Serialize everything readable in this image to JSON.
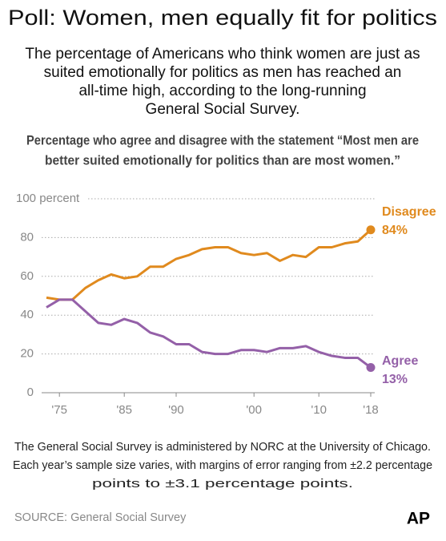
{
  "chart_data": {
    "type": "line",
    "title": "Poll: Women, men equally fit for politics",
    "subtitle": [
      "The percentage of Americans who think women are just as",
      "suited emotionally for politics as men has reached an",
      "all-time high, according to the long-running",
      "General Social Survey."
    ],
    "chart_subtitle": [
      "Percentage who agree and disagree with the statement “Most men are",
      "better suited emotionally for politics than are most women.”"
    ],
    "categories": [
      null,
      "'75",
      null,
      null,
      null,
      null,
      "'85",
      null,
      null,
      null,
      "'90",
      null,
      null,
      null,
      null,
      null,
      "'00",
      null,
      null,
      null,
      null,
      "'10",
      null,
      null,
      null,
      "'18"
    ],
    "series": [
      {
        "name": "Disagree",
        "color": "#e08a1e",
        "values": [
          49,
          48,
          48,
          54,
          58,
          61,
          59,
          60,
          65,
          65,
          69,
          71,
          74,
          75,
          75,
          72,
          71,
          72,
          68,
          71,
          70,
          75,
          75,
          77,
          78,
          84
        ],
        "value_labels": [
          null,
          null,
          null,
          null,
          null,
          null,
          null,
          null,
          null,
          null,
          null,
          null,
          null,
          null,
          null,
          null,
          null,
          null,
          null,
          null,
          null,
          null,
          null,
          null,
          null,
          "84%"
        ]
      },
      {
        "name": "Agree",
        "color": "#9460a8",
        "values": [
          44,
          48,
          48,
          42,
          36,
          35,
          38,
          36,
          31,
          29,
          25,
          25,
          21,
          20,
          20,
          22,
          22,
          21,
          23,
          23,
          24,
          21,
          19,
          18,
          18,
          13
        ],
        "value_labels": [
          null,
          null,
          null,
          null,
          null,
          null,
          null,
          null,
          null,
          null,
          null,
          null,
          null,
          null,
          null,
          null,
          null,
          null,
          null,
          null,
          null,
          null,
          null,
          null,
          null,
          "13%"
        ]
      }
    ],
    "ylim": [
      0,
      100
    ],
    "yticks": [
      0,
      20,
      40,
      60,
      80,
      {
        "value": 100,
        "label": "100 percent"
      }
    ],
    "grid": true,
    "note": [
      "The General Social Survey is administered by NORC at the University of Chicago.",
      "Each year’s sample size varies, with margins of error ranging from ±2.2 percentage",
      "points to ±3.1 percentage points."
    ],
    "source": "SOURCE: General Social Survey",
    "logo": "AP"
  }
}
